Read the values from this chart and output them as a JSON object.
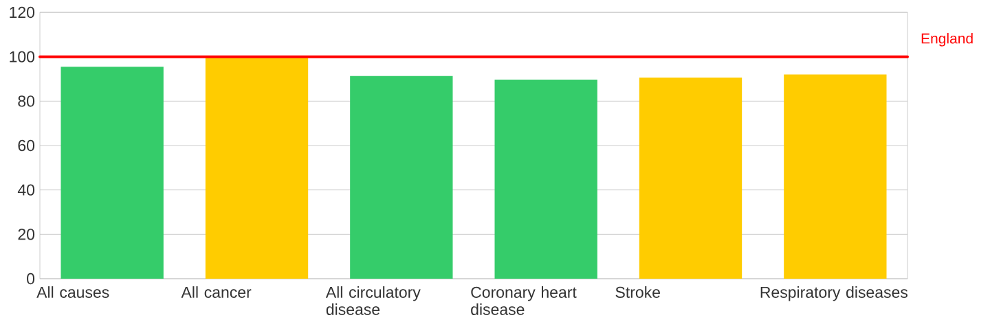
{
  "chart_data": {
    "type": "bar",
    "categories": [
      "All causes",
      "All cancer",
      "All circulatory disease",
      "Coronary heart disease",
      "Stroke",
      "Respiratory diseases"
    ],
    "values": [
      95.5,
      99.5,
      91.3,
      89.7,
      90.6,
      92.0
    ],
    "colors": [
      "#35cc6a",
      "#ffcc00",
      "#35cc6a",
      "#35cc6a",
      "#ffcc00",
      "#ffcc00"
    ],
    "ylim": [
      0,
      120
    ],
    "yticks": [
      0,
      20,
      40,
      60,
      80,
      100,
      120
    ],
    "grid": "y",
    "ref_lines": [
      {
        "axis": "y",
        "value": 100,
        "label": "England",
        "color": "#ff0000"
      }
    ]
  }
}
